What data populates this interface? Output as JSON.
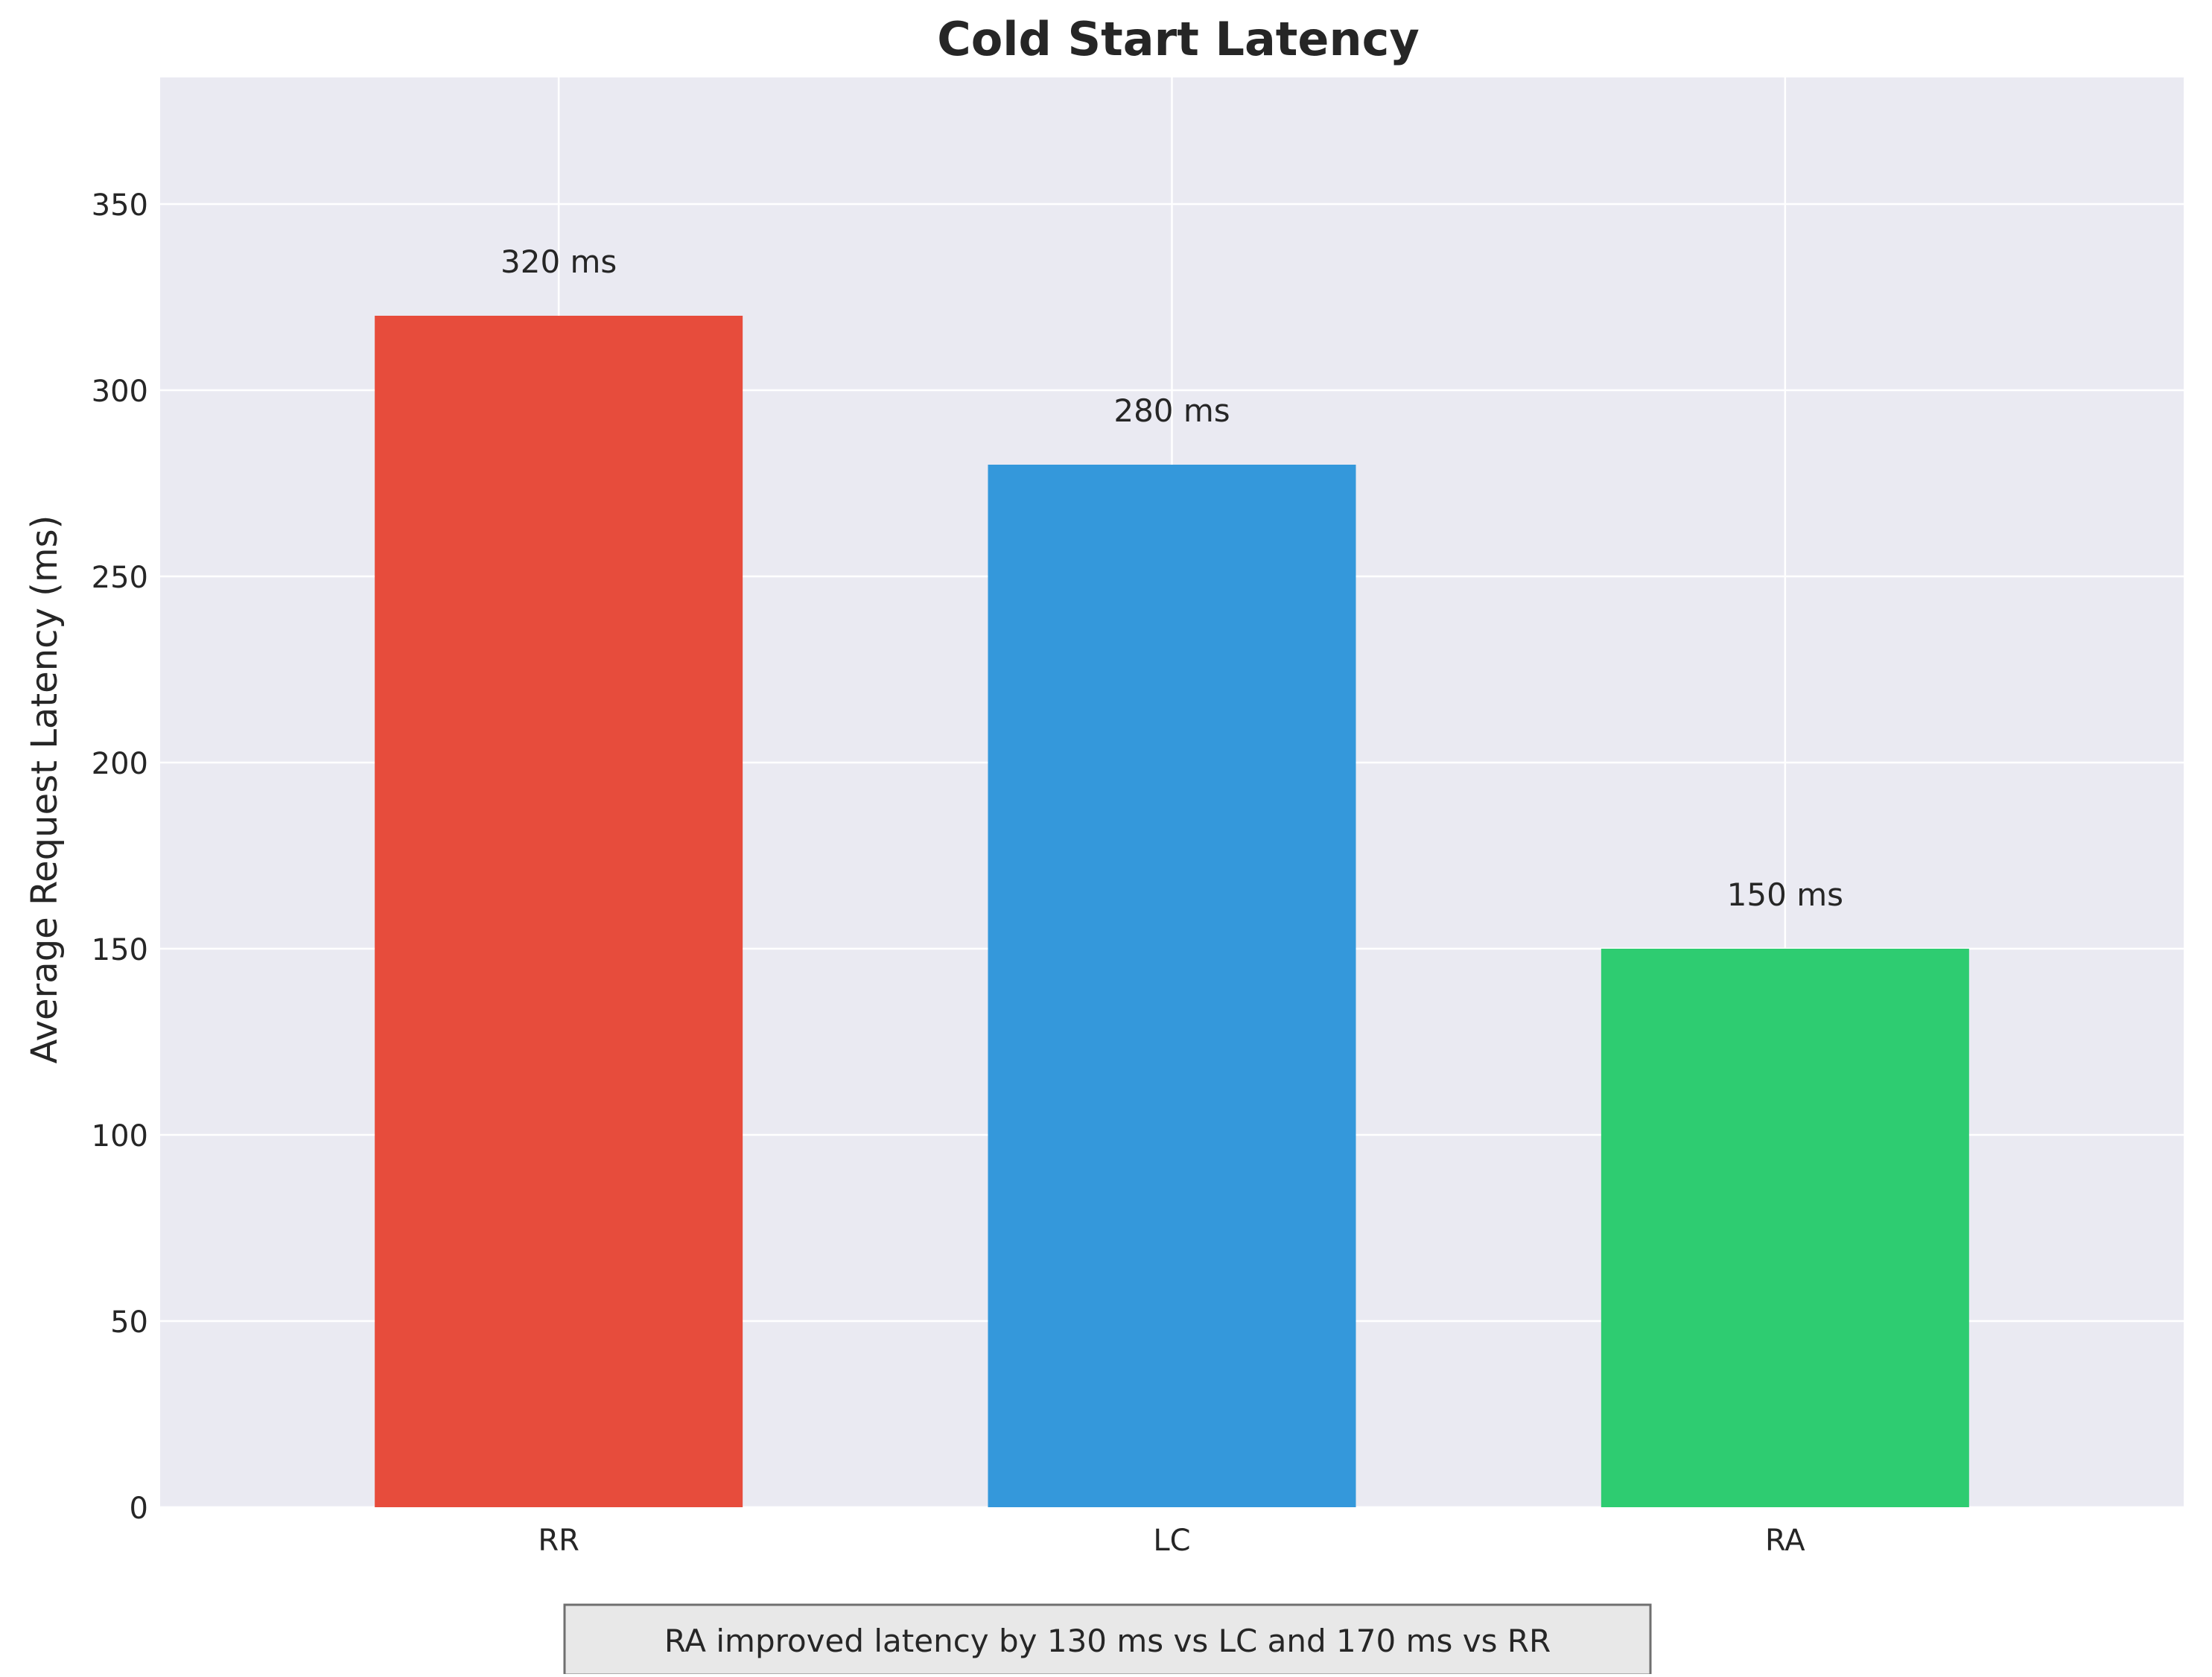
{
  "chart_data": {
    "type": "bar",
    "title": "Cold Start Latency",
    "xlabel": "",
    "ylabel": "Average Request Latency (ms)",
    "categories": [
      "RR",
      "LC",
      "RA"
    ],
    "values": [
      320,
      280,
      150
    ],
    "value_labels": [
      "320 ms",
      "280 ms",
      "150 ms"
    ],
    "colors": [
      "#e74c3c",
      "#3498db",
      "#2ecc71"
    ],
    "ylim": [
      0,
      384
    ],
    "yticks": [
      0,
      50,
      100,
      150,
      200,
      250,
      300,
      350
    ],
    "grid": true,
    "background": "#eaeaf2",
    "annotation": "RA improved latency by 130 ms vs LC and 170 ms vs RR"
  }
}
